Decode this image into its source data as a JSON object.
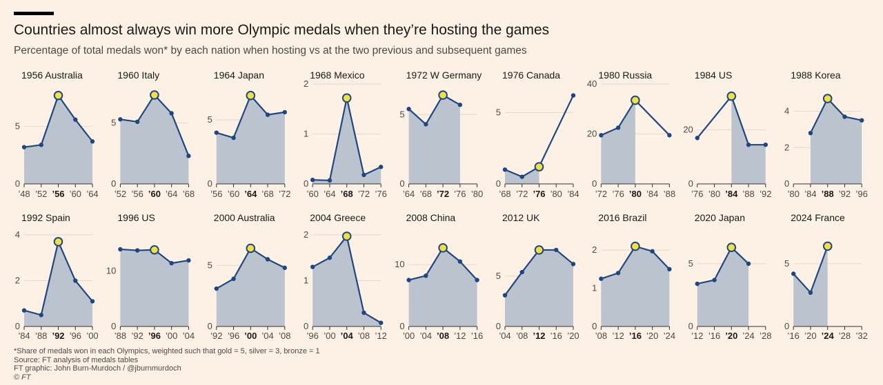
{
  "title": "Countries almost always win more Olympic medals when they’re hosting the games",
  "subtitle": "Percentage of total medals won* by each nation when hosting vs at the two previous and subsequent games",
  "footer": {
    "note": "*Share of medals won in each Olympics, weighted such that gold = 5, silver = 3, bronze = 1",
    "source": "Source: FT analysis of medals tables",
    "graphic": "FT graphic: John Burn-Murdoch / @jburnmurdoch",
    "copyright": "© FT"
  },
  "colors": {
    "background": "#fdf1e6",
    "line": "#1d4782",
    "area": "#b7c0cd",
    "host_marker": "#f2df42",
    "grid": "#e3d8ce",
    "axis": "#33302e"
  },
  "chart_data": [
    {
      "type": "area",
      "title": "1956 Australia",
      "x_labels": [
        "’48",
        "’52",
        "’56",
        "’60",
        "’64"
      ],
      "host_index": 2,
      "values": [
        3.2,
        3.4,
        7.7,
        5.6,
        3.7
      ],
      "ylim": [
        0,
        8.7
      ],
      "yticks": [
        0,
        5
      ]
    },
    {
      "type": "area",
      "title": "1960 Italy",
      "x_labels": [
        "’52",
        "’56",
        "’60",
        "’64",
        "’68"
      ],
      "host_index": 2,
      "values": [
        5.3,
        5.1,
        7.3,
        5.8,
        2.3
      ],
      "ylim": [
        0,
        8.2
      ],
      "yticks": [
        0,
        5
      ]
    },
    {
      "type": "area",
      "title": "1964 Japan",
      "x_labels": [
        "’56",
        "’60",
        "’64",
        "’68",
        "’72"
      ],
      "host_index": 2,
      "values": [
        4.0,
        3.6,
        6.9,
        5.4,
        5.6
      ],
      "ylim": [
        0,
        7.8
      ],
      "yticks": [
        0,
        5
      ]
    },
    {
      "type": "area",
      "title": "1968 Mexico",
      "x_labels": [
        "’60",
        "’64",
        "’68",
        "’72",
        "’76"
      ],
      "host_index": 2,
      "values": [
        0.08,
        0.07,
        1.72,
        0.18,
        0.34
      ],
      "ylim": [
        0,
        2
      ],
      "yticks": [
        0,
        1,
        2
      ]
    },
    {
      "type": "area",
      "title": "1972 W Germany",
      "x_labels": [
        "’64",
        "’68",
        "’72",
        "’76",
        "’80"
      ],
      "host_index": 2,
      "values": [
        5.4,
        4.3,
        6.4,
        5.7,
        null
      ],
      "ylim": [
        0,
        7.2
      ],
      "yticks": [
        0,
        5
      ]
    },
    {
      "type": "area",
      "title": "1976 Canada",
      "x_labels": [
        "’68",
        "’72",
        "’76",
        "’80",
        "’84"
      ],
      "host_index": 2,
      "values": [
        1.0,
        0.5,
        1.2,
        null,
        6.2
      ],
      "ylim": [
        0,
        7.0
      ],
      "yticks": [
        0,
        5
      ]
    },
    {
      "type": "area",
      "title": "1980 Russia",
      "x_labels": [
        "’72",
        "’76",
        "’80",
        "’84",
        "’88"
      ],
      "host_index": 2,
      "values": [
        19.5,
        22.5,
        33.5,
        null,
        19.5
      ],
      "ylim": [
        0,
        40
      ],
      "yticks": [
        0,
        20,
        40
      ]
    },
    {
      "type": "area",
      "title": "1984 US",
      "x_labels": [
        "’76",
        "’80",
        "’84",
        "’88",
        "’92"
      ],
      "host_index": 2,
      "values": [
        17.0,
        null,
        32.5,
        14.5,
        14.5
      ],
      "ylim": [
        0,
        37
      ],
      "yticks": [
        0,
        20
      ]
    },
    {
      "type": "area",
      "title": "1988 Korea",
      "x_labels": [
        "’80",
        "’84",
        "’88",
        "’92",
        "’96"
      ],
      "host_index": 2,
      "values": [
        null,
        2.8,
        4.7,
        3.7,
        3.5
      ],
      "ylim": [
        0,
        5.5
      ],
      "yticks": [
        0,
        2,
        4
      ]
    },
    {
      "type": "area",
      "title": "1992 Spain",
      "x_labels": [
        "’84",
        "’88",
        "’92",
        "’96",
        "’00"
      ],
      "host_index": 2,
      "values": [
        0.7,
        0.5,
        3.7,
        2.0,
        1.1
      ],
      "ylim": [
        0,
        4
      ],
      "yticks": [
        0,
        2,
        4
      ]
    },
    {
      "type": "area",
      "title": "1996 US",
      "x_labels": [
        "’88",
        "’92",
        "’96",
        "’00",
        "’04"
      ],
      "host_index": 2,
      "values": [
        13.9,
        13.7,
        13.8,
        11.4,
        11.9
      ],
      "ylim": [
        0,
        16.5
      ],
      "yticks": [
        0,
        10
      ]
    },
    {
      "type": "area",
      "title": "2000 Australia",
      "x_labels": [
        "’92",
        "’96",
        "’00",
        "’04",
        "’08"
      ],
      "host_index": 2,
      "values": [
        3.1,
        3.9,
        6.4,
        5.5,
        4.8
      ],
      "ylim": [
        0,
        7.5
      ],
      "yticks": [
        0,
        5
      ]
    },
    {
      "type": "area",
      "title": "2004 Greece",
      "x_labels": [
        "’96",
        "’00",
        "’04",
        "’08",
        "’12"
      ],
      "host_index": 2,
      "values": [
        1.3,
        1.5,
        1.97,
        0.3,
        0.08
      ],
      "ylim": [
        0,
        2
      ],
      "yticks": [
        0,
        1,
        2
      ]
    },
    {
      "type": "area",
      "title": "2008 China",
      "x_labels": [
        "’00",
        "’04",
        "’08",
        "’12",
        "’16"
      ],
      "host_index": 2,
      "values": [
        7.5,
        8.2,
        12.7,
        10.5,
        7.5
      ],
      "ylim": [
        0,
        14.8
      ],
      "yticks": [
        0,
        10
      ]
    },
    {
      "type": "area",
      "title": "2012 UK",
      "x_labels": [
        "’04",
        "’08",
        "’12",
        "’16",
        "’20"
      ],
      "host_index": 2,
      "values": [
        3.1,
        5.4,
        7.6,
        7.6,
        6.2
      ],
      "ylim": [
        0,
        9.1
      ],
      "yticks": [
        0,
        5
      ]
    },
    {
      "type": "area",
      "title": "2016 Brazil",
      "x_labels": [
        "’08",
        "’12",
        "’16",
        "’20",
        "’24"
      ],
      "host_index": 2,
      "values": [
        1.25,
        1.4,
        2.1,
        1.97,
        1.5
      ],
      "ylim": [
        0,
        2.4
      ],
      "yticks": [
        0,
        1,
        2
      ]
    },
    {
      "type": "area",
      "title": "2020 Japan",
      "x_labels": [
        "’12",
        "’16",
        "’20",
        "’24",
        "’28"
      ],
      "host_index": 2,
      "values": [
        3.4,
        3.7,
        6.3,
        5.0,
        null
      ],
      "ylim": [
        0,
        7.3
      ],
      "yticks": [
        0,
        5
      ]
    },
    {
      "type": "area",
      "title": "2024 France",
      "x_labels": [
        "’16",
        "’20",
        "’24",
        "’28",
        "’32"
      ],
      "host_index": 2,
      "values": [
        4.2,
        2.7,
        6.4,
        null,
        null
      ],
      "ylim": [
        0,
        7.3
      ],
      "yticks": [
        0,
        5
      ]
    }
  ]
}
